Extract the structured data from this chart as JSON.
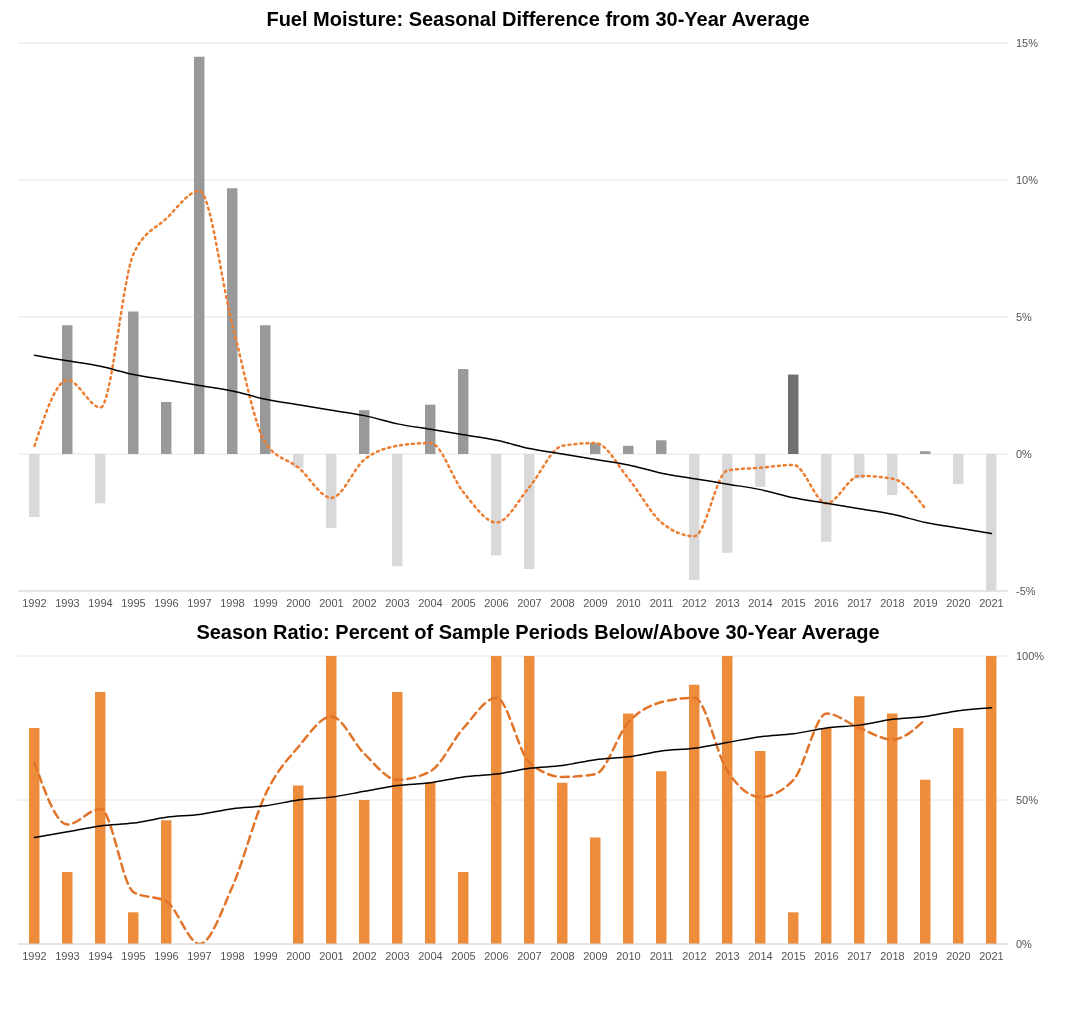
{
  "chart_data": [
    {
      "type": "bar",
      "title": "Fuel Moisture: Seasonal Difference from 30-Year Average",
      "categories": [
        "1992",
        "1993",
        "1994",
        "1995",
        "1996",
        "1997",
        "1998",
        "1999",
        "2000",
        "2001",
        "2002",
        "2003",
        "2004",
        "2005",
        "2006",
        "2007",
        "2008",
        "2009",
        "2010",
        "2011",
        "2012",
        "2013",
        "2014",
        "2015",
        "2016",
        "2017",
        "2018",
        "2019",
        "2020",
        "2021"
      ],
      "series": [
        {
          "values": [
            -2.3,
            4.7,
            -1.8,
            5.2,
            1.9,
            14.5,
            9.7,
            4.7,
            -0.5,
            -2.7,
            1.6,
            -4.1,
            1.8,
            3.1,
            -3.7,
            -4.2,
            0,
            0.4,
            0.3,
            0.5,
            -4.6,
            -3.6,
            -1.2,
            2.9,
            -3.2,
            -0.9,
            -1.5,
            0.1,
            -1.1,
            -5.0
          ],
          "colors": [
            "#d9d9d9",
            "#999999",
            "#d9d9d9",
            "#999999",
            "#999999",
            "#999999",
            "#999999",
            "#999999",
            "#d9d9d9",
            "#d9d9d9",
            "#999999",
            "#d9d9d9",
            "#999999",
            "#999999",
            "#d9d9d9",
            "#d9d9d9",
            "#999999",
            "#999999",
            "#999999",
            "#999999",
            "#d9d9d9",
            "#d9d9d9",
            "#d9d9d9",
            "#707070",
            "#d9d9d9",
            "#d9d9d9",
            "#d9d9d9",
            "#999999",
            "#d9d9d9",
            "#d9d9d9"
          ]
        },
        {
          "type": "line",
          "color": "#ed7d31",
          "line_style": "dotted",
          "values": [
            0.3,
            2.7,
            1.7,
            7.3,
            8.6,
            9.6,
            4.7,
            0.4,
            -0.5,
            -1.6,
            -0.2,
            0.3,
            0.4,
            -1.4,
            -2.5,
            -1.2,
            0.3,
            0.4,
            -0.9,
            -2.5,
            -3.0,
            -0.6,
            -0.5,
            -0.4,
            -1.8,
            -0.8,
            -0.9,
            -2.0,
            null,
            null
          ]
        },
        {
          "type": "line",
          "color": "#000000",
          "line_style": "solid",
          "values": [
            3.6,
            3.4,
            3.2,
            2.9,
            2.7,
            2.5,
            2.3,
            2.0,
            1.8,
            1.6,
            1.4,
            1.1,
            0.9,
            0.7,
            0.5,
            0.2,
            0.0,
            -0.2,
            -0.4,
            -0.7,
            -0.9,
            -1.1,
            -1.3,
            -1.6,
            -1.8,
            -2.0,
            -2.2,
            -2.5,
            -2.7,
            -2.9
          ]
        }
      ],
      "ylim": [
        -5,
        15
      ],
      "yticks": [
        {
          "value": -5,
          "label": "-5%"
        },
        {
          "value": 0,
          "label": "0%"
        },
        {
          "value": 5,
          "label": "5%"
        },
        {
          "value": 10,
          "label": "10%"
        },
        {
          "value": 15,
          "label": "15%"
        }
      ],
      "grid": "y",
      "marker": "none"
    },
    {
      "type": "bar",
      "title": "Season Ratio: Percent of Sample Periods Below/Above 30-Year Average",
      "categories": [
        "1992",
        "1993",
        "1994",
        "1995",
        "1996",
        "1997",
        "1998",
        "1999",
        "2000",
        "2001",
        "2002",
        "2003",
        "2004",
        "2005",
        "2006",
        "2007",
        "2008",
        "2009",
        "2010",
        "2011",
        "2012",
        "2013",
        "2014",
        "2015",
        "2016",
        "2017",
        "2018",
        "2019",
        "2020",
        "2021"
      ],
      "series": [
        {
          "color": "#ed8c3b",
          "values": [
            75,
            25,
            87.5,
            11,
            43,
            0,
            0,
            0,
            55,
            100,
            50,
            87.5,
            56,
            25,
            100,
            100,
            56,
            37,
            80,
            60,
            90,
            100,
            67,
            11,
            75,
            86,
            80,
            57,
            75,
            100
          ]
        },
        {
          "type": "line",
          "color": "#e2742a",
          "line_style": "dashed",
          "values": [
            63,
            41.5,
            47,
            18,
            14.7,
            0,
            20,
            52,
            68.5,
            79,
            66,
            57,
            60,
            75,
            85.5,
            63,
            58,
            59,
            77,
            84,
            85.5,
            60,
            51,
            57,
            80,
            75,
            71,
            78,
            null,
            null
          ]
        },
        {
          "type": "line",
          "color": "#000000",
          "line_style": "solid",
          "values": [
            37,
            39,
            41,
            42,
            44,
            45,
            47,
            48,
            50,
            51,
            53,
            55,
            56,
            58,
            59,
            61,
            62,
            64,
            65,
            67,
            68,
            70,
            72,
            73,
            75,
            76,
            78,
            79,
            81,
            82
          ]
        }
      ],
      "ylim": [
        0,
        100
      ],
      "yticks": [
        {
          "value": 0,
          "label": "0%"
        },
        {
          "value": 50,
          "label": "50%"
        },
        {
          "value": 100,
          "label": "100%"
        }
      ],
      "grid": "y",
      "marker": "none"
    }
  ]
}
